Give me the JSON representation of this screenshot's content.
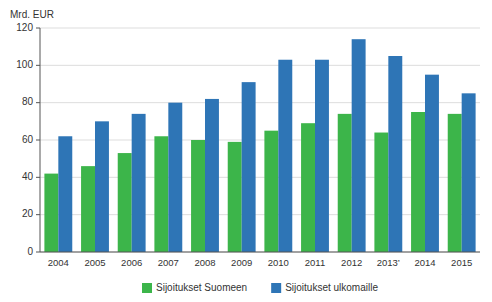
{
  "chart_data": {
    "type": "bar",
    "ylabel": "Mrd. EUR",
    "categories": [
      "2004",
      "2005",
      "2006",
      "2007",
      "2008",
      "2009",
      "2010",
      "2011",
      "2012",
      "2013’",
      "2014",
      "2015"
    ],
    "series": [
      {
        "name": "Sijoitukset Suomeen",
        "color": "#3cb54a",
        "values": [
          42,
          46,
          53,
          62,
          60,
          59,
          65,
          69,
          74,
          64,
          75,
          74
        ]
      },
      {
        "name": "Sijoitukset ulkomaille",
        "color": "#2e75b6",
        "values": [
          62,
          70,
          74,
          80,
          82,
          91,
          103,
          103,
          114,
          105,
          95,
          85
        ]
      }
    ],
    "ylim": [
      0,
      120
    ],
    "yticks": [
      0,
      20,
      40,
      60,
      80,
      100,
      120
    ],
    "grid": true,
    "legend": "bottom"
  }
}
